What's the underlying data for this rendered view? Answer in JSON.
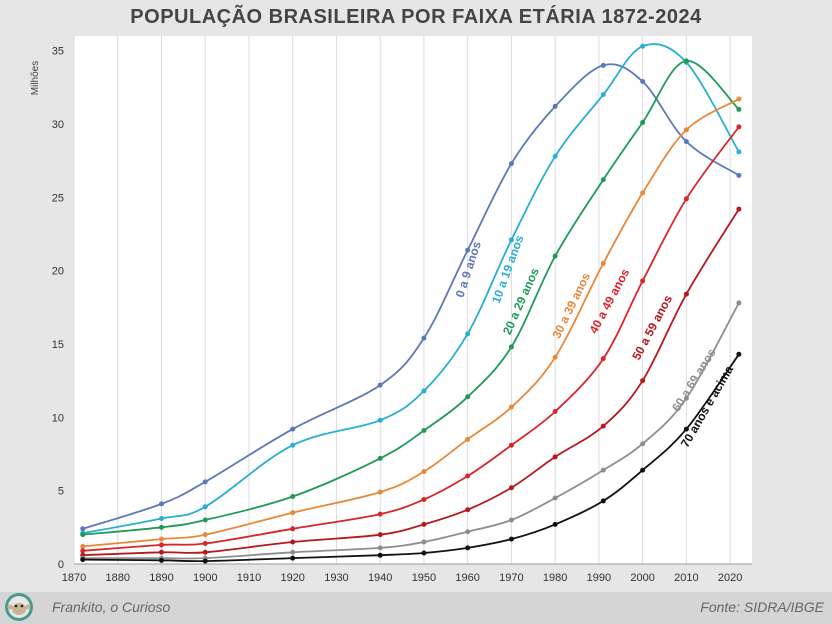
{
  "title": "POPULAÇÃO BRASILEIRA POR FAIXA ETÁRIA 1872-2024",
  "footer": {
    "author": "Frankito, o Curioso",
    "source": "Fonte: SIDRA/IBGE"
  },
  "chart_data": {
    "type": "line",
    "title": "POPULAÇÃO BRASILEIRA POR FAIXA ETÁRIA 1872-2024",
    "xlabel": "",
    "ylabel": "Milhões",
    "xlim": [
      1870,
      2025
    ],
    "ylim": [
      0,
      36
    ],
    "xticks": [
      1870,
      1880,
      1890,
      1900,
      1910,
      1920,
      1930,
      1940,
      1950,
      1960,
      1970,
      1980,
      1990,
      2000,
      2010,
      2020
    ],
    "yticks": [
      0,
      5,
      10,
      15,
      20,
      25,
      30,
      35
    ],
    "grid": "vertical",
    "x": [
      1872,
      1890,
      1900,
      1920,
      1940,
      1950,
      1960,
      1970,
      1980,
      1991,
      2000,
      2010,
      2022
    ],
    "series": [
      {
        "name": "0 a 9 anos",
        "color": "#5b78b8",
        "values": [
          2.4,
          4.1,
          5.6,
          9.2,
          12.2,
          15.4,
          21.4,
          27.3,
          31.2,
          34.0,
          32.9,
          28.8,
          26.5
        ]
      },
      {
        "name": "10 a 19 anos",
        "color": "#29aed4",
        "values": [
          2.1,
          3.1,
          3.9,
          8.1,
          9.8,
          11.8,
          15.7,
          22.1,
          27.8,
          32.0,
          35.3,
          34.2,
          28.1
        ]
      },
      {
        "name": "20 a 29 anos",
        "color": "#1f9a57",
        "values": [
          2.0,
          2.5,
          3.0,
          4.6,
          7.2,
          9.1,
          11.4,
          14.8,
          21.0,
          26.2,
          30.1,
          34.3,
          31.0
        ]
      },
      {
        "name": "30 a 39 anos",
        "color": "#e8883a",
        "values": [
          1.2,
          1.7,
          2.0,
          3.5,
          4.9,
          6.3,
          8.5,
          10.7,
          14.1,
          20.5,
          25.3,
          29.6,
          31.7
        ]
      },
      {
        "name": "40 a 49 anos",
        "color": "#d8262b",
        "values": [
          0.9,
          1.3,
          1.4,
          2.4,
          3.4,
          4.4,
          6.0,
          8.1,
          10.4,
          14.0,
          19.3,
          24.9,
          29.8
        ]
      },
      {
        "name": "50 a 59 anos",
        "color": "#b7181c",
        "values": [
          0.6,
          0.8,
          0.8,
          1.5,
          2.0,
          2.7,
          3.7,
          5.2,
          7.3,
          9.4,
          12.5,
          18.4,
          24.2
        ]
      },
      {
        "name": "60 a 69 anos",
        "color": "#8e8e8e",
        "values": [
          0.4,
          0.4,
          0.4,
          0.8,
          1.1,
          1.5,
          2.2,
          3.0,
          4.5,
          6.4,
          8.2,
          11.3,
          17.8
        ]
      },
      {
        "name": "70 anos e acima",
        "color": "#111111",
        "values": [
          0.3,
          0.25,
          0.2,
          0.4,
          0.6,
          0.75,
          1.1,
          1.7,
          2.7,
          4.3,
          6.4,
          9.2,
          14.3
        ]
      }
    ]
  }
}
